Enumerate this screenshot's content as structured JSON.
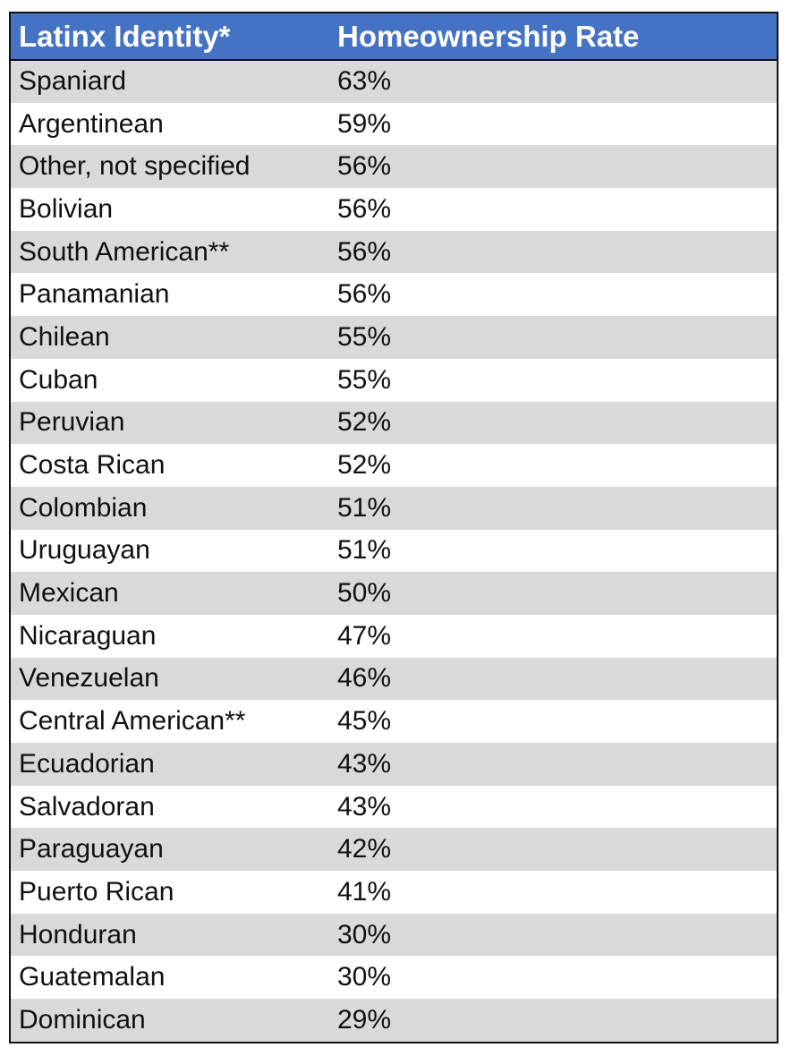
{
  "table": {
    "headers": [
      "Latinx Identity*",
      "Homeownership Rate"
    ],
    "rows": [
      {
        "identity": "Spaniard",
        "rate": "63%"
      },
      {
        "identity": "Argentinean",
        "rate": "59%"
      },
      {
        "identity": "Other, not specified",
        "rate": "56%"
      },
      {
        "identity": "Bolivian",
        "rate": "56%"
      },
      {
        "identity": "South American**",
        "rate": "56%"
      },
      {
        "identity": "Panamanian",
        "rate": "56%"
      },
      {
        "identity": "Chilean",
        "rate": "55%"
      },
      {
        "identity": "Cuban",
        "rate": "55%"
      },
      {
        "identity": "Peruvian",
        "rate": "52%"
      },
      {
        "identity": "Costa Rican",
        "rate": "52%"
      },
      {
        "identity": "Colombian",
        "rate": "51%"
      },
      {
        "identity": "Uruguayan",
        "rate": "51%"
      },
      {
        "identity": "Mexican",
        "rate": "50%"
      },
      {
        "identity": "Nicaraguan",
        "rate": "47%"
      },
      {
        "identity": "Venezuelan",
        "rate": "46%"
      },
      {
        "identity": "Central American**",
        "rate": "45%"
      },
      {
        "identity": "Ecuadorian",
        "rate": "43%"
      },
      {
        "identity": "Salvadoran",
        "rate": "43%"
      },
      {
        "identity": "Paraguayan",
        "rate": "42%"
      },
      {
        "identity": "Puerto Rican",
        "rate": "41%"
      },
      {
        "identity": "Honduran",
        "rate": "30%"
      },
      {
        "identity": "Guatemalan",
        "rate": "30%"
      },
      {
        "identity": "Dominican",
        "rate": "29%"
      }
    ]
  },
  "colors": {
    "header_bg": "#4472c4",
    "header_text": "#ffffff",
    "stripe": "#d9d9d9",
    "border": "#111111"
  }
}
